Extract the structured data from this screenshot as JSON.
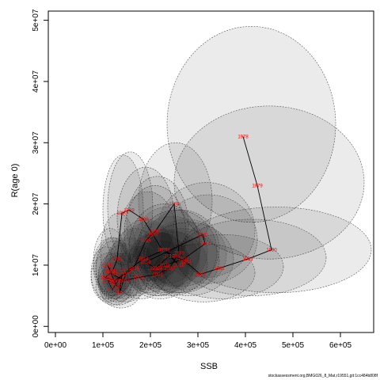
{
  "chart_data": {
    "type": "scatter",
    "title": "",
    "xlabel": "SSB",
    "ylabel": "R(age 0)",
    "xlim": [
      -15000,
      670000
    ],
    "ylim": [
      -1000000,
      51500000
    ],
    "x_ticks": [
      {
        "value": 0,
        "label": "0e+00"
      },
      {
        "value": 100000,
        "label": "1e+05"
      },
      {
        "value": 200000,
        "label": "2e+05"
      },
      {
        "value": 300000,
        "label": "3e+05"
      },
      {
        "value": 400000,
        "label": "4e+05"
      },
      {
        "value": 500000,
        "label": "5e+05"
      },
      {
        "value": 600000,
        "label": "6e+05"
      }
    ],
    "y_ticks": [
      {
        "value": 0,
        "label": "0e+00"
      },
      {
        "value": 10000000,
        "label": "1e+07"
      },
      {
        "value": 20000000,
        "label": "2e+07"
      },
      {
        "value": 30000000,
        "label": "3e+07"
      },
      {
        "value": 40000000,
        "label": "4e+07"
      },
      {
        "value": 50000000,
        "label": "5e+07"
      }
    ],
    "points": [
      {
        "year": "1978",
        "ssb": 395000,
        "rec": 31000000,
        "ssb_lo": 235000,
        "ssb_hi": 590000,
        "rec_lo": 17000000,
        "rec_hi": 49000000
      },
      {
        "year": "1979",
        "ssb": 425000,
        "rec": 23000000,
        "ssb_lo": 250000,
        "ssb_hi": 650000,
        "rec_lo": 11000000,
        "rec_hi": 36000000
      },
      {
        "year": "1980",
        "ssb": 455000,
        "rec": 12500000,
        "ssb_lo": 265000,
        "ssb_hi": 665000,
        "rec_lo": 5500000,
        "rec_hi": 19500000
      },
      {
        "year": "1981",
        "ssb": 405000,
        "rec": 11000000,
        "ssb_lo": 255000,
        "ssb_hi": 570000,
        "rec_lo": 5000000,
        "rec_hi": 17500000
      },
      {
        "year": "1982",
        "ssb": 345000,
        "rec": 9500000,
        "ssb_lo": 225000,
        "ssb_hi": 480000,
        "rec_lo": 4500000,
        "rec_hi": 15000000
      },
      {
        "year": "1983",
        "ssb": 305000,
        "rec": 8500000,
        "ssb_lo": 205000,
        "ssb_hi": 420000,
        "rec_lo": 4000000,
        "rec_hi": 13500000
      },
      {
        "year": "1984",
        "ssb": 275000,
        "rec": 10500000,
        "ssb_lo": 185000,
        "ssb_hi": 375000,
        "rec_lo": 5000000,
        "rec_hi": 17000000
      },
      {
        "year": "1985",
        "ssb": 250000,
        "rec": 11500000,
        "ssb_lo": 170000,
        "ssb_hi": 340000,
        "rec_lo": 5500000,
        "rec_hi": 19000000
      },
      {
        "year": "1986",
        "ssb": 225000,
        "rec": 12500000,
        "ssb_lo": 155000,
        "ssb_hi": 305000,
        "rec_lo": 6000000,
        "rec_hi": 20000000
      },
      {
        "year": "1987",
        "ssb": 205000,
        "rec": 15000000,
        "ssb_lo": 145000,
        "ssb_hi": 275000,
        "rec_lo": 7500000,
        "rec_hi": 23000000
      },
      {
        "year": "1988",
        "ssb": 185000,
        "rec": 17500000,
        "ssb_lo": 130000,
        "ssb_hi": 250000,
        "rec_lo": 9500000,
        "rec_hi": 26000000
      },
      {
        "year": "1989",
        "ssb": 155000,
        "rec": 19000000,
        "ssb_lo": 110000,
        "ssb_hi": 205000,
        "rec_lo": 10500000,
        "rec_hi": 28500000
      },
      {
        "year": "1990",
        "ssb": 140000,
        "rec": 18500000,
        "ssb_lo": 100000,
        "ssb_hi": 185000,
        "rec_lo": 10000000,
        "rec_hi": 28000000
      },
      {
        "year": "1991",
        "ssb": 130000,
        "rec": 11000000,
        "ssb_lo": 95000,
        "ssb_hi": 170000,
        "rec_lo": 5500000,
        "rec_hi": 18500000
      },
      {
        "year": "1992",
        "ssb": 120000,
        "rec": 9000000,
        "ssb_lo": 85000,
        "ssb_hi": 160000,
        "rec_lo": 5000000,
        "rec_hi": 14500000
      },
      {
        "year": "1993",
        "ssb": 105000,
        "rec": 8000000,
        "ssb_lo": 75000,
        "ssb_hi": 140000,
        "rec_lo": 4500000,
        "rec_hi": 13000000
      },
      {
        "year": "1994",
        "ssb": 125000,
        "rec": 7500000,
        "ssb_lo": 90000,
        "ssb_hi": 165000,
        "rec_lo": 4500000,
        "rec_hi": 12000000
      },
      {
        "year": "1995",
        "ssb": 165000,
        "rec": 9500000,
        "ssb_lo": 115000,
        "ssb_hi": 220000,
        "rec_lo": 5000000,
        "rec_hi": 16000000
      },
      {
        "year": "1996",
        "ssb": 190000,
        "rec": 14000000,
        "ssb_lo": 135000,
        "ssb_hi": 255000,
        "rec_lo": 7500000,
        "rec_hi": 22000000
      },
      {
        "year": "1997",
        "ssb": 210000,
        "rec": 15500000,
        "ssb_lo": 150000,
        "ssb_hi": 280000,
        "rec_lo": 8500000,
        "rec_hi": 24500000
      },
      {
        "year": "1998",
        "ssb": 250000,
        "rec": 20000000,
        "ssb_lo": 175000,
        "ssb_hi": 330000,
        "rec_lo": 11000000,
        "rec_hi": 30000000
      },
      {
        "year": "1999",
        "ssb": 260000,
        "rec": 12000000,
        "ssb_lo": 185000,
        "ssb_hi": 345000,
        "rec_lo": 6500000,
        "rec_hi": 19000000
      },
      {
        "year": "2000",
        "ssb": 240000,
        "rec": 9500000,
        "ssb_lo": 170000,
        "ssb_hi": 320000,
        "rec_lo": 5000000,
        "rec_hi": 15500000
      },
      {
        "year": "2001",
        "ssb": 215000,
        "rec": 8500000,
        "ssb_lo": 150000,
        "ssb_hi": 290000,
        "rec_lo": 4500000,
        "rec_hi": 14000000
      },
      {
        "year": "2002",
        "ssb": 175000,
        "rec": 8000000,
        "ssb_lo": 125000,
        "ssb_hi": 235000,
        "rec_lo": 4500000,
        "rec_hi": 13000000
      },
      {
        "year": "2003",
        "ssb": 145000,
        "rec": 7500000,
        "ssb_lo": 100000,
        "ssb_hi": 195000,
        "rec_lo": 4000000,
        "rec_hi": 12000000
      },
      {
        "year": "2004",
        "ssb": 120000,
        "rec": 8500000,
        "ssb_lo": 85000,
        "ssb_hi": 160000,
        "rec_lo": 4500000,
        "rec_hi": 14000000
      },
      {
        "year": "2005",
        "ssb": 110000,
        "rec": 10000000,
        "ssb_lo": 80000,
        "ssb_hi": 150000,
        "rec_lo": 5500000,
        "rec_hi": 16000000
      },
      {
        "year": "2006",
        "ssb": 115000,
        "rec": 9000000,
        "ssb_lo": 80000,
        "ssb_hi": 155000,
        "rec_lo": 5000000,
        "rec_hi": 14500000
      },
      {
        "year": "2007",
        "ssb": 130000,
        "rec": 6500000,
        "ssb_lo": 90000,
        "ssb_hi": 175000,
        "rec_lo": 3500000,
        "rec_hi": 10500000
      },
      {
        "year": "2008",
        "ssb": 125000,
        "rec": 7000000,
        "ssb_lo": 90000,
        "ssb_hi": 170000,
        "rec_lo": 4000000,
        "rec_hi": 11500000
      },
      {
        "year": "2009",
        "ssb": 110000,
        "rec": 7500000,
        "ssb_lo": 75000,
        "ssb_hi": 150000,
        "rec_lo": 4000000,
        "rec_hi": 12000000
      },
      {
        "year": "2010",
        "ssb": 120000,
        "rec": 6000000,
        "ssb_lo": 85000,
        "ssb_hi": 160000,
        "rec_lo": 3500000,
        "rec_hi": 9500000
      },
      {
        "year": "2011",
        "ssb": 140000,
        "rec": 8500000,
        "ssb_lo": 100000,
        "ssb_hi": 190000,
        "rec_lo": 4500000,
        "rec_hi": 13500000
      },
      {
        "year": "2012",
        "ssb": 135000,
        "rec": 5500000,
        "ssb_lo": 95000,
        "ssb_hi": 180000,
        "rec_lo": 3000000,
        "rec_hi": 9000000
      },
      {
        "year": "2013",
        "ssb": 150000,
        "rec": 9000000,
        "ssb_lo": 105000,
        "ssb_hi": 205000,
        "rec_lo": 5000000,
        "rec_hi": 14500000
      },
      {
        "year": "2014",
        "ssb": 185000,
        "rec": 11000000,
        "ssb_lo": 130000,
        "ssb_hi": 250000,
        "rec_lo": 6000000,
        "rec_hi": 17500000
      },
      {
        "year": "2015",
        "ssb": 230000,
        "rec": 12500000,
        "ssb_lo": 165000,
        "ssb_hi": 305000,
        "rec_lo": 7000000,
        "rec_hi": 19500000
      },
      {
        "year": "2016",
        "ssb": 260000,
        "rec": 10000000,
        "ssb_lo": 185000,
        "ssb_hi": 345000,
        "rec_lo": 5500000,
        "rec_hi": 16000000
      },
      {
        "year": "2017",
        "ssb": 240000,
        "rec": 11500000,
        "ssb_lo": 170000,
        "ssb_hi": 320000,
        "rec_lo": 6500000,
        "rec_hi": 18000000
      },
      {
        "year": "2018",
        "ssb": 210000,
        "rec": 9500000,
        "ssb_lo": 150000,
        "ssb_hi": 280000,
        "rec_lo": 5000000,
        "rec_hi": 15500000
      },
      {
        "year": "2019",
        "ssb": 190000,
        "rec": 10500000,
        "ssb_lo": 135000,
        "ssb_hi": 255000,
        "rec_lo": 5500000,
        "rec_hi": 17000000
      },
      {
        "year": "2020",
        "ssb": 310000,
        "rec": 15000000,
        "ssb_lo": 215000,
        "ssb_hi": 420000,
        "rec_lo": 8000000,
        "rec_hi": 23500000
      },
      {
        "year": "2021",
        "ssb": 315000,
        "rec": 13500000,
        "ssb_lo": 220000,
        "ssb_hi": 425000,
        "rec_lo": 7000000,
        "rec_hi": 21500000
      },
      {
        "year": "2022",
        "ssb": 270000,
        "rec": 11000000,
        "ssb_lo": 190000,
        "ssb_hi": 360000,
        "rec_lo": 6000000,
        "rec_hi": 17500000
      },
      {
        "year": "2023",
        "ssb": 230000,
        "rec": 10000000,
        "ssb_lo": 160000,
        "ssb_hi": 305000,
        "rec_lo": 5500000,
        "rec_hi": 16000000
      },
      {
        "year": "2024",
        "ssb": 215000,
        "rec": 9500000,
        "ssb_lo": 150000,
        "ssb_hi": 285000,
        "rec_lo": 5000000,
        "rec_hi": 15500000
      }
    ],
    "grid": false,
    "legend": "none",
    "colors": {
      "ellipse_fill": "#000000",
      "ellipse_stroke": "#555555",
      "label": "#ff0000",
      "path": "#000000"
    }
  },
  "footer": "stockassessment.org,BMG026_8_Mat,r19551,git:1cc484b808f"
}
